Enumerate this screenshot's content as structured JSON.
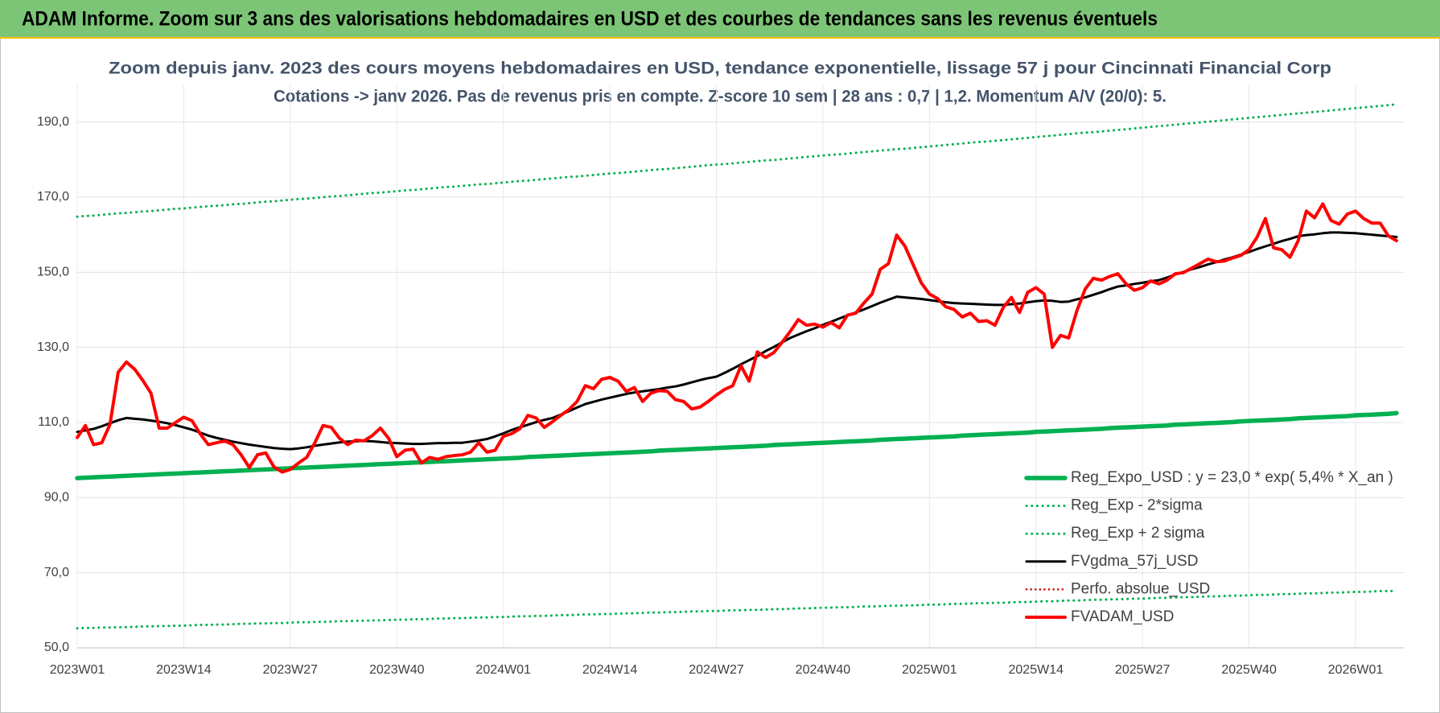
{
  "banner": "ADAM Informe. Zoom sur 3 ans des valorisations hebdomadaires en USD et des courbes de tendances sans les revenus éventuels",
  "chart_data": {
    "type": "line",
    "title": "Zoom depuis janv. 2023 des cours moyens hebdomadaires en USD, tendance exponentielle, lissage 57 j pour Cincinnati Financial Corp",
    "subtitle": "Cotations -> janv 2026. Pas de revenus pris en compte. Z-score 10 sem | 28 ans : 0,7 | 1,2. Momentum A/V (20/0): 5.",
    "categories": [
      "2023W01",
      null,
      null,
      null,
      null,
      null,
      null,
      null,
      null,
      null,
      null,
      null,
      null,
      "2023W14",
      null,
      null,
      null,
      null,
      null,
      null,
      null,
      null,
      null,
      null,
      null,
      null,
      "2023W27",
      null,
      null,
      null,
      null,
      null,
      null,
      null,
      null,
      null,
      null,
      null,
      null,
      "2023W40",
      null,
      null,
      null,
      null,
      null,
      null,
      null,
      null,
      null,
      null,
      null,
      null,
      "2024W01",
      null,
      null,
      null,
      null,
      null,
      null,
      null,
      null,
      null,
      null,
      null,
      null,
      "2024W14",
      null,
      null,
      null,
      null,
      null,
      null,
      null,
      null,
      null,
      null,
      null,
      null,
      "2024W27",
      null,
      null,
      null,
      null,
      null,
      null,
      null,
      null,
      null,
      null,
      null,
      null,
      "2024W40",
      null,
      null,
      null,
      null,
      null,
      null,
      null,
      null,
      null,
      null,
      null,
      null,
      "2025W01",
      null,
      null,
      null,
      null,
      null,
      null,
      null,
      null,
      null,
      null,
      null,
      null,
      "2025W14",
      null,
      null,
      null,
      null,
      null,
      null,
      null,
      null,
      null,
      null,
      null,
      null,
      "2025W27",
      null,
      null,
      null,
      null,
      null,
      null,
      null,
      null,
      null,
      null,
      null,
      null,
      "2025W40",
      null,
      null,
      null,
      null,
      null,
      null,
      null,
      null,
      null,
      null,
      null,
      null,
      "2026W01",
      null,
      null,
      null,
      null,
      null
    ],
    "ylim": [
      50,
      200
    ],
    "yticks": [
      {
        "value": 50,
        "label": "50,0"
      },
      {
        "value": 70,
        "label": "70,0"
      },
      {
        "value": 90,
        "label": "90,0"
      },
      {
        "value": 110,
        "label": "110,0"
      },
      {
        "value": 130,
        "label": "130,0"
      },
      {
        "value": 150,
        "label": "150,0"
      },
      {
        "value": 170,
        "label": "170,0"
      },
      {
        "value": 190,
        "label": "190,0"
      }
    ],
    "grid": true,
    "legend": "lower right",
    "series": [
      {
        "name": "Reg_Expo_USD : y = 23,0 * exp( 5,4% *  X_an )",
        "color": "#00b050",
        "style": "solid",
        "values": [
          95.2,
          95.3,
          95.4,
          95.5,
          95.6,
          95.7,
          95.8,
          95.9,
          96.0,
          96.1,
          96.2,
          96.3,
          96.4,
          96.5,
          96.6,
          96.7,
          96.8,
          96.9,
          97.0,
          97.1,
          97.2,
          97.3,
          97.4,
          97.5,
          97.6,
          97.7,
          97.8,
          97.9,
          98.0,
          98.1,
          98.2,
          98.3,
          98.4,
          98.5,
          98.6,
          98.7,
          98.8,
          98.9,
          99.0,
          99.1,
          99.2,
          99.3,
          99.4,
          99.5,
          99.6,
          99.7,
          99.8,
          99.9,
          100.0,
          100.1,
          100.2,
          100.3,
          100.4,
          100.5,
          100.6,
          100.8,
          100.9,
          101.0,
          101.1,
          101.2,
          101.3,
          101.4,
          101.5,
          101.6,
          101.7,
          101.8,
          101.9,
          102.0,
          102.1,
          102.2,
          102.3,
          102.5,
          102.6,
          102.7,
          102.8,
          102.9,
          103.0,
          103.1,
          103.2,
          103.3,
          103.4,
          103.5,
          103.6,
          103.7,
          103.8,
          104.0,
          104.1,
          104.2,
          104.3,
          104.4,
          104.5,
          104.6,
          104.7,
          104.8,
          104.9,
          105.0,
          105.1,
          105.2,
          105.4,
          105.5,
          105.6,
          105.7,
          105.8,
          105.9,
          106.0,
          106.1,
          106.2,
          106.3,
          106.5,
          106.6,
          106.7,
          106.8,
          106.9,
          107.0,
          107.1,
          107.2,
          107.3,
          107.5,
          107.6,
          107.7,
          107.8,
          107.9,
          108.0,
          108.1,
          108.2,
          108.3,
          108.5,
          108.6,
          108.7,
          108.8,
          108.9,
          109.0,
          109.1,
          109.2,
          109.4,
          109.5,
          109.6,
          109.7,
          109.8,
          109.9,
          110.0,
          110.1,
          110.3,
          110.4,
          110.5,
          110.6,
          110.7,
          110.8,
          110.9,
          111.1,
          111.2,
          111.3,
          111.4,
          111.5,
          111.6,
          111.7,
          111.9,
          112.0,
          112.1,
          112.2,
          112.3,
          112.5
        ]
      },
      {
        "name": "Reg_Exp - 2*sigma",
        "color": "#00b050",
        "style": "dotted",
        "values": [
          55.2,
          55.3,
          55.3,
          55.4,
          55.4,
          55.5,
          55.5,
          55.6,
          55.7,
          55.7,
          55.8,
          55.8,
          55.9,
          55.9,
          56.0,
          56.1,
          56.1,
          56.2,
          56.2,
          56.3,
          56.4,
          56.4,
          56.5,
          56.5,
          56.6,
          56.6,
          56.7,
          56.8,
          56.8,
          56.9,
          56.9,
          57.0,
          57.1,
          57.1,
          57.2,
          57.2,
          57.3,
          57.3,
          57.4,
          57.5,
          57.5,
          57.6,
          57.6,
          57.7,
          57.8,
          57.8,
          57.9,
          57.9,
          58.0,
          58.1,
          58.1,
          58.2,
          58.2,
          58.3,
          58.4,
          58.4,
          58.5,
          58.5,
          58.6,
          58.7,
          58.7,
          58.8,
          58.9,
          58.9,
          59.0,
          59.0,
          59.1,
          59.2,
          59.2,
          59.3,
          59.4,
          59.4,
          59.5,
          59.5,
          59.6,
          59.7,
          59.7,
          59.8,
          59.8,
          59.9,
          60.0,
          60.0,
          60.1,
          60.1,
          60.2,
          60.3,
          60.3,
          60.4,
          60.5,
          60.5,
          60.6,
          60.7,
          60.7,
          60.8,
          60.8,
          60.9,
          61.0,
          61.0,
          61.1,
          61.2,
          61.2,
          61.3,
          61.3,
          61.4,
          61.5,
          61.5,
          61.6,
          61.7,
          61.7,
          61.8,
          61.9,
          61.9,
          62.0,
          62.0,
          62.1,
          62.2,
          62.2,
          62.3,
          62.4,
          62.4,
          62.5,
          62.6,
          62.6,
          62.7,
          62.8,
          62.8,
          62.9,
          62.9,
          63.0,
          63.1,
          63.1,
          63.2,
          63.3,
          63.3,
          63.4,
          63.5,
          63.5,
          63.6,
          63.7,
          63.7,
          63.8,
          63.9,
          63.9,
          64.0,
          64.1,
          64.1,
          64.2,
          64.3,
          64.3,
          64.4,
          64.5,
          64.5,
          64.6,
          64.7,
          64.7,
          64.8,
          64.9,
          64.9,
          65.0,
          65.1,
          65.1,
          65.2
        ]
      },
      {
        "name": "Reg_Exp + 2 sigma",
        "color": "#00b050",
        "style": "dotted",
        "values": [
          164.8,
          165.0,
          165.1,
          165.3,
          165.5,
          165.7,
          165.8,
          166.0,
          166.2,
          166.3,
          166.5,
          166.7,
          166.9,
          167.0,
          167.2,
          167.4,
          167.6,
          167.7,
          167.9,
          168.1,
          168.2,
          168.4,
          168.6,
          168.8,
          168.9,
          169.1,
          169.3,
          169.5,
          169.6,
          169.8,
          170.0,
          170.2,
          170.3,
          170.5,
          170.7,
          170.9,
          171.1,
          171.2,
          171.4,
          171.6,
          171.8,
          171.9,
          172.1,
          172.3,
          172.5,
          172.7,
          172.8,
          173.0,
          173.2,
          173.4,
          173.5,
          173.7,
          173.9,
          174.1,
          174.3,
          174.4,
          174.6,
          174.8,
          175.0,
          175.2,
          175.4,
          175.5,
          175.7,
          175.9,
          176.1,
          176.3,
          176.4,
          176.6,
          176.8,
          177.0,
          177.2,
          177.4,
          177.5,
          177.7,
          177.9,
          178.1,
          178.3,
          178.5,
          178.7,
          178.8,
          179.0,
          179.2,
          179.4,
          179.6,
          179.8,
          179.9,
          180.1,
          180.3,
          180.5,
          180.7,
          180.9,
          181.1,
          181.3,
          181.4,
          181.6,
          181.8,
          182.0,
          182.2,
          182.4,
          182.6,
          182.8,
          182.9,
          183.1,
          183.3,
          183.5,
          183.7,
          183.9,
          184.1,
          184.3,
          184.5,
          184.7,
          184.8,
          185.0,
          185.2,
          185.4,
          185.6,
          185.8,
          186.0,
          186.2,
          186.4,
          186.6,
          186.8,
          187.0,
          187.2,
          187.3,
          187.5,
          187.7,
          187.9,
          188.1,
          188.3,
          188.5,
          188.7,
          188.9,
          189.1,
          189.3,
          189.5,
          189.7,
          189.9,
          190.1,
          190.3,
          190.5,
          190.7,
          190.9,
          191.1,
          191.3,
          191.5,
          191.7,
          191.9,
          192.1,
          192.3,
          192.5,
          192.7,
          192.9,
          193.1,
          193.3,
          193.5,
          193.7,
          193.9,
          194.1,
          194.3,
          194.5,
          194.7
        ]
      },
      {
        "name": "FVgdma_57j_USD",
        "color": "#000000",
        "style": "solid",
        "values": [
          107.5,
          107.9,
          108.3,
          109.0,
          109.8,
          110.6,
          111.2,
          111.0,
          110.8,
          110.5,
          110.2,
          109.8,
          109.3,
          108.7,
          108.1,
          107.3,
          106.5,
          105.9,
          105.4,
          104.9,
          104.5,
          104.1,
          103.8,
          103.5,
          103.2,
          103.0,
          102.9,
          103.1,
          103.4,
          103.8,
          104.1,
          104.4,
          104.7,
          104.9,
          105.0,
          105.1,
          105.0,
          104.8,
          104.6,
          104.5,
          104.4,
          104.3,
          104.3,
          104.4,
          104.5,
          104.5,
          104.6,
          104.6,
          104.9,
          105.2,
          105.6,
          106.3,
          107.1,
          108.0,
          108.7,
          109.4,
          110.1,
          110.7,
          111.2,
          112.1,
          113.0,
          114.0,
          114.9,
          115.5,
          116.1,
          116.6,
          117.1,
          117.6,
          118.0,
          118.3,
          118.6,
          118.9,
          119.3,
          119.6,
          120.1,
          120.7,
          121.3,
          121.8,
          122.2,
          123.2,
          124.3,
          125.5,
          126.6,
          127.7,
          129.0,
          130.1,
          131.3,
          132.5,
          133.4,
          134.3,
          135.1,
          136.0,
          136.8,
          137.7,
          138.5,
          139.3,
          140.1,
          141.0,
          141.9,
          142.7,
          143.5,
          143.3,
          143.1,
          142.9,
          142.6,
          142.3,
          142.0,
          141.8,
          141.7,
          141.6,
          141.5,
          141.4,
          141.3,
          141.3,
          141.5,
          141.7,
          142.0,
          142.3,
          142.5,
          142.4,
          142.1,
          142.2,
          142.8,
          143.3,
          144.0,
          144.7,
          145.5,
          146.2,
          146.5,
          146.9,
          147.2,
          147.6,
          147.9,
          148.6,
          149.4,
          150.1,
          150.8,
          151.4,
          152.1,
          152.7,
          153.4,
          154.0,
          154.7,
          155.4,
          156.2,
          156.9,
          157.6,
          158.3,
          158.9,
          159.6,
          159.9,
          160.1,
          160.4,
          160.6,
          160.6,
          160.5,
          160.4,
          160.2,
          160.0,
          159.8,
          159.6,
          159.4
        ]
      },
      {
        "name": "Perfo. absolue_USD",
        "color": "#c00000",
        "style": "dotted"
      },
      {
        "name": "FVADAM_USD",
        "color": "#ff0000",
        "style": "solid",
        "values": [
          106.0,
          109.2,
          104.1,
          104.6,
          109.5,
          123.4,
          126.1,
          124.2,
          121.2,
          117.8,
          108.5,
          108.5,
          110.0,
          111.4,
          110.5,
          107.0,
          104.1,
          104.6,
          105.1,
          104.1,
          101.4,
          98.0,
          101.4,
          101.9,
          98.2,
          96.8,
          97.5,
          99.2,
          100.7,
          104.6,
          109.2,
          108.7,
          105.8,
          104.1,
          105.3,
          105.1,
          106.5,
          108.5,
          105.8,
          100.9,
          102.6,
          102.9,
          99.2,
          100.7,
          100.2,
          100.9,
          101.2,
          101.4,
          102.1,
          104.6,
          102.1,
          102.6,
          106.3,
          107.0,
          108.3,
          111.9,
          111.2,
          108.7,
          110.2,
          111.9,
          113.4,
          115.6,
          119.8,
          119.0,
          121.5,
          122.0,
          121.0,
          118.3,
          119.3,
          115.6,
          117.8,
          118.5,
          118.3,
          116.1,
          115.6,
          113.6,
          114.1,
          115.6,
          117.3,
          118.8,
          119.8,
          125.1,
          121.0,
          128.8,
          127.3,
          128.6,
          131.3,
          134.2,
          137.4,
          135.9,
          136.2,
          135.4,
          136.6,
          135.2,
          138.6,
          139.1,
          141.8,
          144.2,
          150.8,
          152.3,
          159.9,
          157.0,
          152.1,
          147.2,
          144.2,
          143.0,
          140.8,
          140.1,
          138.1,
          139.1,
          136.9,
          137.1,
          135.9,
          140.6,
          143.3,
          139.3,
          144.7,
          145.9,
          144.2,
          130.0,
          133.2,
          132.5,
          139.8,
          145.5,
          148.4,
          147.9,
          148.9,
          149.6,
          146.9,
          145.2,
          145.9,
          147.7,
          146.9,
          147.9,
          149.6,
          149.9,
          151.1,
          152.3,
          153.5,
          152.8,
          153.0,
          153.8,
          154.5,
          156.0,
          159.4,
          164.3,
          156.5,
          156.0,
          154.0,
          158.4,
          166.3,
          164.5,
          168.2,
          163.8,
          162.8,
          165.5,
          166.3,
          164.3,
          163.1,
          163.1,
          159.7,
          158.4
        ]
      }
    ]
  }
}
